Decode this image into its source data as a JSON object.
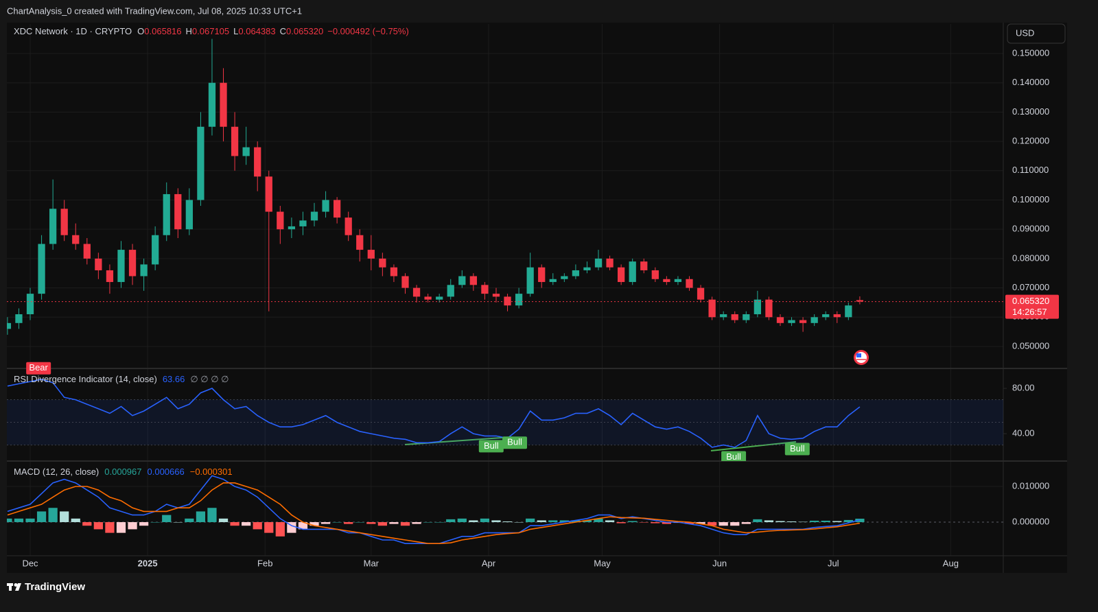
{
  "header": {
    "caption": "ChartAnalysis_0 created with TradingView.com, Jul 08, 2025 10:33 UTC+1",
    "button": "USD",
    "brand": "TradingView"
  },
  "chart_data": [
    {
      "type": "candlestick",
      "title": "XDC Network · 1D · CRYPTO",
      "legend_items": [
        {
          "key": "O",
          "value": "0.065816"
        },
        {
          "key": "H",
          "value": "0.067105"
        },
        {
          "key": "L",
          "value": "0.064383"
        },
        {
          "key": "C",
          "value": "0.065320"
        }
      ],
      "change_label": "−0.000492 (−0.75%)",
      "x": [
        -6,
        -3,
        0,
        3,
        6,
        9,
        12,
        15,
        18,
        21,
        24,
        27,
        30,
        33,
        36,
        39,
        42,
        45,
        48,
        51,
        54,
        57,
        60,
        63,
        66,
        69,
        72,
        75,
        78,
        81,
        84,
        87,
        90,
        93,
        96,
        99,
        102,
        105,
        108,
        111,
        114,
        117,
        120,
        123,
        126,
        129,
        132,
        135,
        138,
        141,
        144,
        147,
        150,
        153,
        156,
        159,
        162,
        165,
        168,
        171,
        174,
        177,
        180,
        183,
        186,
        189,
        192,
        195,
        198,
        201,
        204,
        207,
        210,
        213,
        216,
        219
      ],
      "open": [
        0.056,
        0.058,
        0.061,
        0.068,
        0.085,
        0.097,
        0.088,
        0.085,
        0.08,
        0.076,
        0.072,
        0.083,
        0.074,
        0.078,
        0.088,
        0.102,
        0.09,
        0.1,
        0.125,
        0.14,
        0.125,
        0.115,
        0.118,
        0.108,
        0.096,
        0.09,
        0.091,
        0.093,
        0.096,
        0.1,
        0.094,
        0.088,
        0.083,
        0.08,
        0.077,
        0.074,
        0.07,
        0.067,
        0.066,
        0.067,
        0.071,
        0.074,
        0.071,
        0.068,
        0.067,
        0.064,
        0.068,
        0.077,
        0.072,
        0.073,
        0.074,
        0.076,
        0.077,
        0.08,
        0.077,
        0.072,
        0.079,
        0.076,
        0.073,
        0.072,
        0.073,
        0.07,
        0.066,
        0.06,
        0.061,
        0.059,
        0.061,
        0.066,
        0.06,
        0.058,
        0.059,
        0.058,
        0.06,
        0.061,
        0.06,
        0.065816
      ],
      "high": [
        0.06,
        0.063,
        0.07,
        0.088,
        0.107,
        0.1,
        0.092,
        0.087,
        0.082,
        0.078,
        0.086,
        0.085,
        0.08,
        0.091,
        0.106,
        0.104,
        0.104,
        0.13,
        0.155,
        0.145,
        0.13,
        0.125,
        0.12,
        0.11,
        0.098,
        0.094,
        0.096,
        0.099,
        0.103,
        0.101,
        0.096,
        0.09,
        0.088,
        0.082,
        0.078,
        0.075,
        0.071,
        0.068,
        0.068,
        0.073,
        0.076,
        0.075,
        0.072,
        0.07,
        0.068,
        0.07,
        0.082,
        0.078,
        0.075,
        0.075,
        0.078,
        0.079,
        0.083,
        0.081,
        0.078,
        0.08,
        0.08,
        0.077,
        0.074,
        0.074,
        0.074,
        0.071,
        0.067,
        0.062,
        0.062,
        0.062,
        0.069,
        0.067,
        0.061,
        0.06,
        0.06,
        0.061,
        0.062,
        0.062,
        0.065,
        0.067105
      ],
      "low": [
        0.054,
        0.056,
        0.059,
        0.066,
        0.083,
        0.086,
        0.083,
        0.078,
        0.073,
        0.068,
        0.07,
        0.071,
        0.069,
        0.076,
        0.086,
        0.087,
        0.088,
        0.098,
        0.122,
        0.12,
        0.11,
        0.112,
        0.103,
        0.062,
        0.085,
        0.087,
        0.088,
        0.091,
        0.094,
        0.092,
        0.086,
        0.079,
        0.076,
        0.074,
        0.072,
        0.068,
        0.065,
        0.065,
        0.065,
        0.066,
        0.07,
        0.069,
        0.066,
        0.065,
        0.062,
        0.063,
        0.067,
        0.07,
        0.071,
        0.072,
        0.073,
        0.075,
        0.076,
        0.076,
        0.071,
        0.071,
        0.075,
        0.072,
        0.071,
        0.071,
        0.069,
        0.065,
        0.059,
        0.059,
        0.058,
        0.058,
        0.06,
        0.059,
        0.057,
        0.057,
        0.055,
        0.057,
        0.059,
        0.058,
        0.059,
        0.064383
      ],
      "close": [
        0.058,
        0.061,
        0.068,
        0.085,
        0.097,
        0.088,
        0.085,
        0.08,
        0.076,
        0.072,
        0.083,
        0.074,
        0.078,
        0.088,
        0.102,
        0.09,
        0.1,
        0.125,
        0.14,
        0.125,
        0.115,
        0.118,
        0.108,
        0.096,
        0.09,
        0.091,
        0.093,
        0.096,
        0.1,
        0.094,
        0.088,
        0.083,
        0.08,
        0.077,
        0.074,
        0.07,
        0.067,
        0.066,
        0.067,
        0.071,
        0.074,
        0.071,
        0.068,
        0.067,
        0.064,
        0.068,
        0.077,
        0.072,
        0.073,
        0.074,
        0.076,
        0.077,
        0.08,
        0.077,
        0.072,
        0.079,
        0.076,
        0.073,
        0.072,
        0.073,
        0.07,
        0.066,
        0.06,
        0.061,
        0.059,
        0.061,
        0.066,
        0.06,
        0.058,
        0.059,
        0.058,
        0.06,
        0.061,
        0.06,
        0.064,
        0.06532
      ],
      "up_color": "#22ab94",
      "down_color": "#f23645",
      "xlim": [
        -6.16,
        256.88
      ],
      "xticks": [
        {
          "value": 0,
          "label": "Dec"
        },
        {
          "value": 31,
          "label": "2025"
        },
        {
          "value": 62,
          "label": "Feb"
        },
        {
          "value": 90,
          "label": "Mar"
        },
        {
          "value": 121,
          "label": "Apr"
        },
        {
          "value": 151,
          "label": "May"
        },
        {
          "value": 182,
          "label": "Jun"
        },
        {
          "value": 212,
          "label": "Jul"
        },
        {
          "value": 243,
          "label": "Aug"
        }
      ],
      "ylim": [
        0.0425,
        0.16007
      ],
      "yticks": [
        {
          "value": 0.05,
          "label": "0.050000"
        },
        {
          "value": 0.06,
          "label": "0.060000"
        },
        {
          "value": 0.07,
          "label": "0.070000"
        },
        {
          "value": 0.08,
          "label": "0.080000"
        },
        {
          "value": 0.09,
          "label": "0.090000"
        },
        {
          "value": 0.1,
          "label": "0.100000"
        },
        {
          "value": 0.11,
          "label": "0.110000"
        },
        {
          "value": 0.12,
          "label": "0.120000"
        },
        {
          "value": 0.13,
          "label": "0.130000"
        },
        {
          "value": 0.14,
          "label": "0.140000"
        },
        {
          "value": 0.15,
          "label": "0.150000"
        }
      ],
      "last_price_label": "0.065320",
      "countdown": "14:26:57",
      "grid": true
    },
    {
      "type": "line",
      "title": "RSI Divergence Indicator (14, close)",
      "status": "∅ ∅ ∅ ∅",
      "series": [
        {
          "color": "#2962ff",
          "last_label": "63.66",
          "values": [
            82,
            84,
            86,
            88,
            85,
            72,
            70,
            66,
            62,
            58,
            64,
            56,
            60,
            66,
            72,
            62,
            66,
            76,
            80,
            70,
            62,
            64,
            56,
            50,
            46,
            46,
            48,
            52,
            56,
            50,
            46,
            42,
            40,
            38,
            36,
            35,
            32,
            32,
            33,
            40,
            46,
            40,
            38,
            38,
            36,
            44,
            60,
            52,
            52,
            54,
            58,
            58,
            62,
            56,
            48,
            58,
            52,
            46,
            44,
            46,
            42,
            36,
            28,
            30,
            28,
            34,
            56,
            40,
            36,
            35,
            36,
            42,
            46,
            46,
            56,
            63.66
          ]
        }
      ],
      "band": [
        30,
        70
      ],
      "midline": 50,
      "band_color": "#2962ff",
      "ylim": [
        15.8,
        97.6
      ],
      "yticks": [
        {
          "value": 40,
          "label": "40.00"
        },
        {
          "value": 80,
          "label": "80.00"
        }
      ],
      "annotations": [
        {
          "label": "Bear",
          "x": 2.2,
          "position": "above",
          "color": "#f23645"
        },
        {
          "label": "Bull",
          "x": 121.7,
          "position": "below",
          "color": "#4caf50"
        },
        {
          "label": "Bull",
          "x": 127.9,
          "position": "below",
          "color": "#4caf50"
        },
        {
          "label": "Bull",
          "x": 185.7,
          "position": "below",
          "color": "#4caf50"
        },
        {
          "label": "Bull",
          "x": 202.5,
          "position": "below",
          "color": "#4caf50"
        }
      ]
    },
    {
      "type": "macd",
      "title": "MACD (12, 26, close)",
      "histogram": {
        "last_label": "0.000967",
        "colors": [
          "#26a69a",
          "#b2dfdb",
          "#ffcdd2",
          "#ff5252"
        ],
        "values": [
          0.001,
          0.001,
          0.001,
          0.003,
          0.004,
          0.003,
          0.001,
          -0.001,
          -0.002,
          -0.003,
          -0.003,
          -0.002,
          -0.001,
          0,
          0.002,
          0,
          0.001,
          0.003,
          0.004,
          0.001,
          -0.001,
          -0.001,
          -0.002,
          -0.003,
          -0.004,
          -0.003,
          -0.002,
          -0.001,
          -0.0005,
          0,
          -0.0005,
          0,
          -0.0005,
          -0.001,
          -0.0005,
          -0.001,
          -0.0005,
          0,
          0,
          0.0008,
          0.001,
          0.0005,
          0.001,
          0.0005,
          0.0002,
          0,
          0.001,
          0.0005,
          0.0005,
          0.0005,
          0.0005,
          0.0005,
          0.001,
          0.0005,
          -0.0003,
          0.0003,
          -0.0001,
          -0.0003,
          -0.0005,
          -0.0002,
          -0.0005,
          -0.0005,
          -0.001,
          -0.001,
          -0.001,
          -0.0005,
          0.0008,
          0.0005,
          0.0003,
          0.0002,
          0.0001,
          0.0004,
          0.0004,
          0.0003,
          0.0006,
          0.000967
        ]
      },
      "series": [
        {
          "color": "#2962ff",
          "last_label": "0.000666",
          "values": [
            0.003,
            0.004,
            0.005,
            0.008,
            0.011,
            0.012,
            0.011,
            0.009,
            0.007,
            0.004,
            0.003,
            0.002,
            0.002,
            0.003,
            0.005,
            0.004,
            0.005,
            0.009,
            0.013,
            0.012,
            0.01,
            0.009,
            0.007,
            0.004,
            0.001,
            -0.001,
            -0.002,
            -0.002,
            -0.002,
            -0.002,
            -0.003,
            -0.003,
            -0.004,
            -0.005,
            -0.005,
            -0.006,
            -0.006,
            -0.006,
            -0.006,
            -0.005,
            -0.004,
            -0.004,
            -0.003,
            -0.003,
            -0.003,
            -0.003,
            -0.001,
            -0.001,
            -0.0005,
            0,
            0.0005,
            0.001,
            0.002,
            0.002,
            0.001,
            0.0015,
            0.001,
            0.0005,
            0,
            0,
            -0.0005,
            -0.001,
            -0.002,
            -0.003,
            -0.0035,
            -0.0035,
            -0.002,
            -0.002,
            -0.002,
            -0.002,
            -0.002,
            -0.0015,
            -0.0012,
            -0.001,
            -0.0002,
            0.000666
          ]
        },
        {
          "color": "#ff6d00",
          "last_label": "−0.000301",
          "values": [
            0.002,
            0.003,
            0.004,
            0.005,
            0.007,
            0.009,
            0.01,
            0.01,
            0.009,
            0.007,
            0.006,
            0.004,
            0.003,
            0.003,
            0.003,
            0.004,
            0.004,
            0.006,
            0.009,
            0.011,
            0.011,
            0.01,
            0.009,
            0.007,
            0.005,
            0.002,
            0,
            -0.001,
            -0.0015,
            -0.002,
            -0.0025,
            -0.003,
            -0.0035,
            -0.004,
            -0.0045,
            -0.005,
            -0.0055,
            -0.006,
            -0.006,
            -0.0058,
            -0.005,
            -0.0045,
            -0.004,
            -0.0035,
            -0.0032,
            -0.003,
            -0.002,
            -0.0015,
            -0.001,
            -0.0005,
            0,
            0.0005,
            0.001,
            0.0015,
            0.0013,
            0.0012,
            0.0011,
            0.0008,
            0.0005,
            0.0002,
            0,
            -0.0005,
            -0.001,
            -0.002,
            -0.0025,
            -0.003,
            -0.0028,
            -0.0025,
            -0.0023,
            -0.0022,
            -0.0021,
            -0.0019,
            -0.0016,
            -0.0013,
            -0.0008,
            -0.000301
          ]
        }
      ],
      "ylim": [
        -0.00942,
        0.01712
      ],
      "yticks": [
        {
          "value": 0,
          "label": "0.000000"
        },
        {
          "value": 0.01,
          "label": "0.010000"
        }
      ]
    }
  ]
}
